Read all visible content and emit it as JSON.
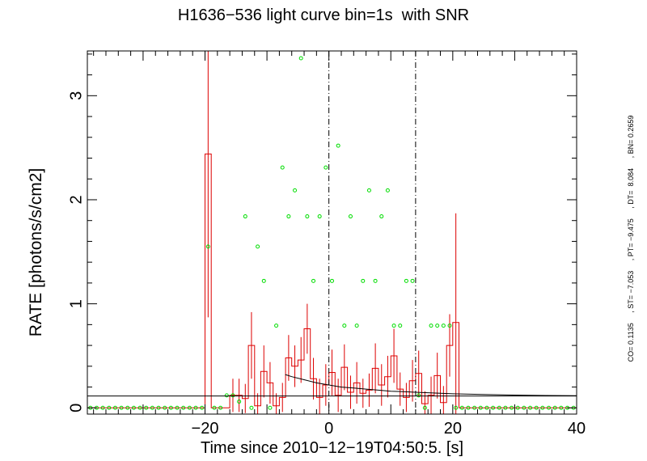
{
  "chart_data": {
    "type": "line",
    "title": "H1636−536 light curve bin=1s  with SNR",
    "xlabel": "Time since 2010−12−19T04:50:5. [s]",
    "ylabel": "RATE [photons/s/cm2]",
    "side_annotation": "CO= 0.1135     , ST= −7.053     , PT= −9.475     , DT=  8.084     , BN= 0.2659",
    "xlim": [
      -39,
      40
    ],
    "ylim": [
      -0.06,
      3.43
    ],
    "x_ticks": [
      {
        "value": -20,
        "label": "−20"
      },
      {
        "value": 0,
        "label": "0"
      },
      {
        "value": 20,
        "label": "20"
      },
      {
        "value": 40,
        "label": "40"
      }
    ],
    "y_ticks": [
      {
        "value": 0,
        "label": "0"
      },
      {
        "value": 1,
        "label": "1"
      },
      {
        "value": 2,
        "label": "2"
      },
      {
        "value": 3,
        "label": "3"
      }
    ],
    "vlines": [
      0,
      14
    ],
    "background_level": 0.1135,
    "colors": {
      "rate": "#dd0000",
      "snr": "#00dd00",
      "axes": "#000000"
    },
    "series": [
      {
        "name": "rate",
        "bins": [
          {
            "x0": -39,
            "x1": -20,
            "y": 0,
            "err": 0
          },
          {
            "x0": -20,
            "x1": -19,
            "y": 2.44,
            "err": 1.57
          },
          {
            "x0": -19,
            "x1": -18,
            "y": 0,
            "err": 0
          },
          {
            "x0": -18,
            "x1": -16,
            "y": 0,
            "err": 0
          },
          {
            "x0": -16,
            "x1": -15,
            "y": 0.12,
            "err": 0.16
          },
          {
            "x0": -15,
            "x1": -14,
            "y": 0.12,
            "err": 0.16
          },
          {
            "x0": -14,
            "x1": -13,
            "y": 0.09,
            "err": 0.14
          },
          {
            "x0": -13,
            "x1": -12,
            "y": 0.6,
            "err": 0.32
          },
          {
            "x0": -12,
            "x1": -11,
            "y": 0.02,
            "err": 0.12
          },
          {
            "x0": -11,
            "x1": -10,
            "y": 0.35,
            "err": 0.25
          },
          {
            "x0": -10,
            "x1": -9,
            "y": 0.24,
            "err": 0.2
          },
          {
            "x0": -9,
            "x1": -8,
            "y": 0.02,
            "err": 0.12
          },
          {
            "x0": -8,
            "x1": -7,
            "y": 0.1,
            "err": 0.14
          },
          {
            "x0": -7,
            "x1": -6,
            "y": 0.48,
            "err": 0.22
          },
          {
            "x0": -6,
            "x1": -5,
            "y": 0.4,
            "err": 0.2
          },
          {
            "x0": -5,
            "x1": -4,
            "y": 0.46,
            "err": 0.22
          },
          {
            "x0": -4,
            "x1": -3,
            "y": 0.76,
            "err": 0.24
          },
          {
            "x0": -3,
            "x1": -2,
            "y": 0.28,
            "err": 0.2
          },
          {
            "x0": -2,
            "x1": -1,
            "y": 0.1,
            "err": 0.18
          },
          {
            "x0": -1,
            "x1": 0,
            "y": 0.22,
            "err": 0.2
          },
          {
            "x0": 0,
            "x1": 1,
            "y": 0.34,
            "err": 0.22
          },
          {
            "x0": 1,
            "x1": 2,
            "y": 0.12,
            "err": 0.16
          },
          {
            "x0": 2,
            "x1": 3,
            "y": 0.39,
            "err": 0.22
          },
          {
            "x0": 3,
            "x1": 4,
            "y": 0.15,
            "err": 0.16
          },
          {
            "x0": 4,
            "x1": 5,
            "y": 0.24,
            "err": 0.2
          },
          {
            "x0": 5,
            "x1": 6,
            "y": 0.14,
            "err": 0.14
          },
          {
            "x0": 6,
            "x1": 7,
            "y": 0.17,
            "err": 0.16
          },
          {
            "x0": 7,
            "x1": 8,
            "y": 0.38,
            "err": 0.24
          },
          {
            "x0": 8,
            "x1": 9,
            "y": 0.22,
            "err": 0.2
          },
          {
            "x0": 9,
            "x1": 10,
            "y": 0.3,
            "err": 0.2
          },
          {
            "x0": 10,
            "x1": 11,
            "y": 0.5,
            "err": 0.26
          },
          {
            "x0": 11,
            "x1": 12,
            "y": 0.18,
            "err": 0.16
          },
          {
            "x0": 12,
            "x1": 13,
            "y": 0.1,
            "err": 0.14
          },
          {
            "x0": 13,
            "x1": 14,
            "y": 0.26,
            "err": 0.2
          },
          {
            "x0": 14,
            "x1": 15,
            "y": 0.33,
            "err": 0.22
          },
          {
            "x0": 15,
            "x1": 16,
            "y": 0.04,
            "err": 0.12
          },
          {
            "x0": 16,
            "x1": 17,
            "y": 0.12,
            "err": 0.18
          },
          {
            "x0": 17,
            "x1": 18,
            "y": 0.31,
            "err": 0.22
          },
          {
            "x0": 18,
            "x1": 19,
            "y": 0.05,
            "err": 0.16
          },
          {
            "x0": 19,
            "x1": 20,
            "y": 0.6,
            "err": 0.3
          },
          {
            "x0": 20,
            "x1": 21,
            "y": 0.82,
            "err": 1.05
          },
          {
            "x0": 21,
            "x1": 40,
            "y": 0,
            "err": 0
          }
        ]
      },
      {
        "name": "snr",
        "x": [
          -38.5,
          -37.5,
          -36.5,
          -35.5,
          -34.5,
          -33.5,
          -32.5,
          -31.5,
          -30.5,
          -29.5,
          -28.5,
          -27.5,
          -26.5,
          -25.5,
          -24.5,
          -23.5,
          -22.5,
          -21.5,
          -20.5,
          -19.5,
          -18.5,
          -17.5,
          -16.5,
          -15.5,
          -14.5,
          -13.5,
          -12.5,
          -11.5,
          -10.5,
          -9.5,
          -8.5,
          -7.5,
          -6.5,
          -5.5,
          -4.5,
          -3.5,
          -2.5,
          -1.5,
          -0.5,
          0.5,
          1.5,
          2.5,
          3.5,
          4.5,
          5.5,
          6.5,
          7.5,
          8.5,
          9.5,
          10.5,
          11.5,
          12.5,
          13.5,
          14.5,
          15.5,
          16.5,
          17.5,
          18.5,
          19.5,
          20.5,
          21.5,
          22.5,
          23.5,
          24.5,
          25.5,
          26.5,
          27.5,
          28.5,
          29.5,
          30.5,
          31.5,
          32.5,
          33.5,
          34.5,
          35.5,
          36.5,
          37.5,
          38.5,
          39.5
        ],
        "y": [
          0,
          0,
          0,
          0,
          0,
          0,
          0,
          0,
          0,
          0,
          0,
          0,
          0,
          0,
          0,
          0,
          0,
          0,
          0,
          1.55,
          0,
          0,
          0.12,
          0.12,
          0.06,
          1.84,
          0,
          1.55,
          1.22,
          0,
          0.79,
          2.31,
          1.84,
          2.09,
          3.36,
          1.84,
          1.22,
          1.84,
          2.31,
          1.22,
          2.52,
          0.79,
          1.84,
          0.79,
          1.22,
          2.09,
          1.22,
          1.84,
          2.09,
          0.79,
          0.79,
          1.22,
          1.22,
          0.12,
          0,
          0.79,
          0.79,
          0.79,
          0.79,
          0,
          0,
          0,
          0,
          0,
          0,
          0,
          0,
          0,
          0,
          0,
          0,
          0,
          0,
          0,
          0,
          0,
          0,
          0,
          0
        ]
      },
      {
        "name": "fit",
        "x": [
          -7.05,
          -6,
          -4,
          -2,
          0,
          2,
          4,
          6,
          8,
          10,
          12,
          14,
          16,
          18,
          20,
          22,
          25,
          30,
          35,
          40
        ],
        "y": [
          0.32,
          0.3,
          0.27,
          0.24,
          0.22,
          0.2,
          0.19,
          0.18,
          0.17,
          0.16,
          0.155,
          0.15,
          0.145,
          0.14,
          0.135,
          0.132,
          0.128,
          0.123,
          0.119,
          0.117
        ]
      }
    ]
  }
}
